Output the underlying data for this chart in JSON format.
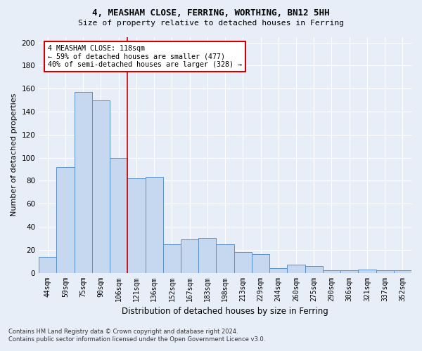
{
  "title1": "4, MEASHAM CLOSE, FERRING, WORTHING, BN12 5HH",
  "title2": "Size of property relative to detached houses in Ferring",
  "xlabel": "Distribution of detached houses by size in Ferring",
  "ylabel": "Number of detached properties",
  "categories": [
    "44sqm",
    "59sqm",
    "75sqm",
    "90sqm",
    "106sqm",
    "121sqm",
    "136sqm",
    "152sqm",
    "167sqm",
    "183sqm",
    "198sqm",
    "213sqm",
    "229sqm",
    "244sqm",
    "260sqm",
    "275sqm",
    "290sqm",
    "306sqm",
    "321sqm",
    "337sqm",
    "352sqm"
  ],
  "values": [
    14,
    92,
    157,
    150,
    100,
    82,
    83,
    25,
    29,
    30,
    25,
    18,
    16,
    4,
    7,
    6,
    2,
    2,
    3,
    2,
    2
  ],
  "bar_color": "#c5d8f0",
  "bar_edge_color": "#5a90cc",
  "background_color": "#e8eef8",
  "vline_x": 4.5,
  "vline_color": "#cc0000",
  "annotation_line1": "4 MEASHAM CLOSE: 118sqm",
  "annotation_line2": "← 59% of detached houses are smaller (477)",
  "annotation_line3": "40% of semi-detached houses are larger (328) →",
  "annotation_box_color": "#ffffff",
  "annotation_box_edge_color": "#cc0000",
  "ylim": [
    0,
    205
  ],
  "yticks": [
    0,
    20,
    40,
    60,
    80,
    100,
    120,
    140,
    160,
    180,
    200
  ],
  "footer1": "Contains HM Land Registry data © Crown copyright and database right 2024.",
  "footer2": "Contains public sector information licensed under the Open Government Licence v3.0."
}
